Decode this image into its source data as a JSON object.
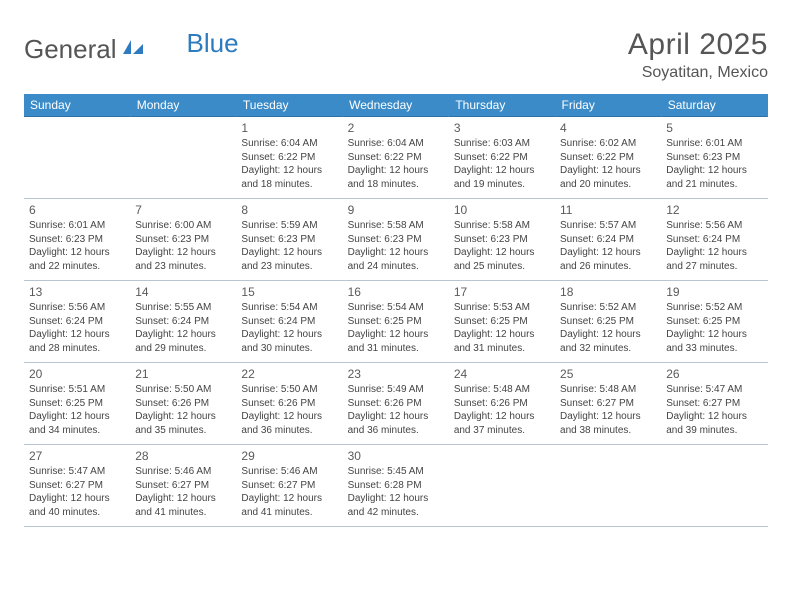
{
  "brand": {
    "part1": "General",
    "part2": "Blue"
  },
  "title": "April 2025",
  "location": "Soyatitan, Mexico",
  "colors": {
    "header_bg": "#3b8bc9",
    "header_text": "#ffffff",
    "border_top": "#2f6fa3",
    "text": "#444444",
    "title_text": "#555555",
    "brand_blue": "#2f7bbf"
  },
  "day_headers": [
    "Sunday",
    "Monday",
    "Tuesday",
    "Wednesday",
    "Thursday",
    "Friday",
    "Saturday"
  ],
  "weeks": [
    [
      null,
      null,
      {
        "n": "1",
        "sunrise": "6:04 AM",
        "sunset": "6:22 PM",
        "daylight": "12 hours and 18 minutes."
      },
      {
        "n": "2",
        "sunrise": "6:04 AM",
        "sunset": "6:22 PM",
        "daylight": "12 hours and 18 minutes."
      },
      {
        "n": "3",
        "sunrise": "6:03 AM",
        "sunset": "6:22 PM",
        "daylight": "12 hours and 19 minutes."
      },
      {
        "n": "4",
        "sunrise": "6:02 AM",
        "sunset": "6:22 PM",
        "daylight": "12 hours and 20 minutes."
      },
      {
        "n": "5",
        "sunrise": "6:01 AM",
        "sunset": "6:23 PM",
        "daylight": "12 hours and 21 minutes."
      }
    ],
    [
      {
        "n": "6",
        "sunrise": "6:01 AM",
        "sunset": "6:23 PM",
        "daylight": "12 hours and 22 minutes."
      },
      {
        "n": "7",
        "sunrise": "6:00 AM",
        "sunset": "6:23 PM",
        "daylight": "12 hours and 23 minutes."
      },
      {
        "n": "8",
        "sunrise": "5:59 AM",
        "sunset": "6:23 PM",
        "daylight": "12 hours and 23 minutes."
      },
      {
        "n": "9",
        "sunrise": "5:58 AM",
        "sunset": "6:23 PM",
        "daylight": "12 hours and 24 minutes."
      },
      {
        "n": "10",
        "sunrise": "5:58 AM",
        "sunset": "6:23 PM",
        "daylight": "12 hours and 25 minutes."
      },
      {
        "n": "11",
        "sunrise": "5:57 AM",
        "sunset": "6:24 PM",
        "daylight": "12 hours and 26 minutes."
      },
      {
        "n": "12",
        "sunrise": "5:56 AM",
        "sunset": "6:24 PM",
        "daylight": "12 hours and 27 minutes."
      }
    ],
    [
      {
        "n": "13",
        "sunrise": "5:56 AM",
        "sunset": "6:24 PM",
        "daylight": "12 hours and 28 minutes."
      },
      {
        "n": "14",
        "sunrise": "5:55 AM",
        "sunset": "6:24 PM",
        "daylight": "12 hours and 29 minutes."
      },
      {
        "n": "15",
        "sunrise": "5:54 AM",
        "sunset": "6:24 PM",
        "daylight": "12 hours and 30 minutes."
      },
      {
        "n": "16",
        "sunrise": "5:54 AM",
        "sunset": "6:25 PM",
        "daylight": "12 hours and 31 minutes."
      },
      {
        "n": "17",
        "sunrise": "5:53 AM",
        "sunset": "6:25 PM",
        "daylight": "12 hours and 31 minutes."
      },
      {
        "n": "18",
        "sunrise": "5:52 AM",
        "sunset": "6:25 PM",
        "daylight": "12 hours and 32 minutes."
      },
      {
        "n": "19",
        "sunrise": "5:52 AM",
        "sunset": "6:25 PM",
        "daylight": "12 hours and 33 minutes."
      }
    ],
    [
      {
        "n": "20",
        "sunrise": "5:51 AM",
        "sunset": "6:25 PM",
        "daylight": "12 hours and 34 minutes."
      },
      {
        "n": "21",
        "sunrise": "5:50 AM",
        "sunset": "6:26 PM",
        "daylight": "12 hours and 35 minutes."
      },
      {
        "n": "22",
        "sunrise": "5:50 AM",
        "sunset": "6:26 PM",
        "daylight": "12 hours and 36 minutes."
      },
      {
        "n": "23",
        "sunrise": "5:49 AM",
        "sunset": "6:26 PM",
        "daylight": "12 hours and 36 minutes."
      },
      {
        "n": "24",
        "sunrise": "5:48 AM",
        "sunset": "6:26 PM",
        "daylight": "12 hours and 37 minutes."
      },
      {
        "n": "25",
        "sunrise": "5:48 AM",
        "sunset": "6:27 PM",
        "daylight": "12 hours and 38 minutes."
      },
      {
        "n": "26",
        "sunrise": "5:47 AM",
        "sunset": "6:27 PM",
        "daylight": "12 hours and 39 minutes."
      }
    ],
    [
      {
        "n": "27",
        "sunrise": "5:47 AM",
        "sunset": "6:27 PM",
        "daylight": "12 hours and 40 minutes."
      },
      {
        "n": "28",
        "sunrise": "5:46 AM",
        "sunset": "6:27 PM",
        "daylight": "12 hours and 41 minutes."
      },
      {
        "n": "29",
        "sunrise": "5:46 AM",
        "sunset": "6:27 PM",
        "daylight": "12 hours and 41 minutes."
      },
      {
        "n": "30",
        "sunrise": "5:45 AM",
        "sunset": "6:28 PM",
        "daylight": "12 hours and 42 minutes."
      },
      null,
      null,
      null
    ]
  ],
  "labels": {
    "sunrise": "Sunrise:",
    "sunset": "Sunset:",
    "daylight": "Daylight:"
  }
}
